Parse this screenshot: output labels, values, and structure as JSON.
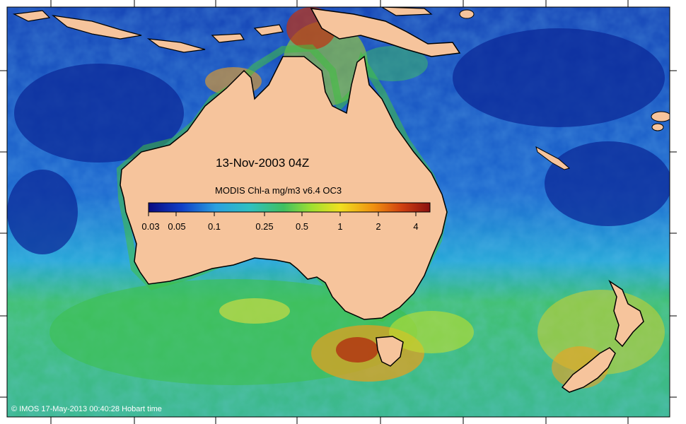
{
  "map": {
    "date_label": "13-Nov-2003 04Z",
    "colorbar": {
      "title": "MODIS Chl-a mg/m3 v6.4 OC3",
      "ticks": [
        "0.03",
        "0.05",
        "0.1",
        "0.25",
        "0.5",
        "1",
        "2",
        "4"
      ],
      "scale": "log",
      "range": [
        0.03,
        5
      ],
      "colors": [
        "#0a0a80",
        "#1040c8",
        "#2aa0e0",
        "#30c0c0",
        "#40c060",
        "#a0e030",
        "#f0e020",
        "#f09010",
        "#d04010",
        "#8a1010"
      ]
    },
    "credit": "© IMOS 17-May-2013 00:40:28 Hobart time",
    "land_color": "#f6c49c"
  }
}
